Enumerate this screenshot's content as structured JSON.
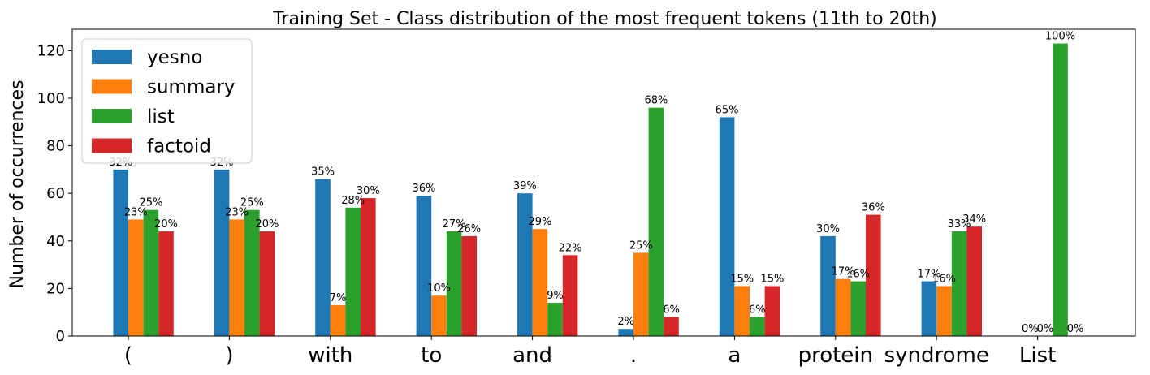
{
  "chart_data": {
    "type": "bar",
    "title": "Training Set - Class distribution of the most frequent tokens (11th to 20th)",
    "xlabel": "",
    "ylabel": "Number of occurrences",
    "categories": [
      "(",
      ")",
      "with",
      "to",
      "and",
      ".",
      "a",
      "protein",
      "syndrome",
      "List"
    ],
    "ylim": [
      0,
      129
    ],
    "yticks": [
      0,
      20,
      40,
      60,
      80,
      100,
      120
    ],
    "grid": false,
    "legend": "top-left",
    "series": [
      {
        "name": "yesno",
        "color": "#1f77b4",
        "values": [
          70,
          70,
          66,
          59,
          60,
          3,
          92,
          42,
          23,
          0
        ],
        "labels": [
          "32%",
          "32%",
          "35%",
          "36%",
          "39%",
          "2%",
          "65%",
          "30%",
          "17%",
          "0%"
        ]
      },
      {
        "name": "summary",
        "color": "#ff7f0e",
        "values": [
          49,
          49,
          13,
          17,
          45,
          35,
          21,
          24,
          21,
          0
        ],
        "labels": [
          "23%",
          "23%",
          "7%",
          "10%",
          "29%",
          "25%",
          "15%",
          "17%",
          "16%",
          "0%"
        ]
      },
      {
        "name": "list",
        "color": "#2ca02c",
        "values": [
          53,
          53,
          54,
          44,
          14,
          96,
          8,
          23,
          44,
          123
        ],
        "labels": [
          "25%",
          "25%",
          "28%",
          "27%",
          "9%",
          "68%",
          "6%",
          "16%",
          "33%",
          "100%"
        ]
      },
      {
        "name": "factoid",
        "color": "#d62728",
        "values": [
          44,
          44,
          58,
          42,
          34,
          8,
          21,
          51,
          46,
          0
        ],
        "labels": [
          "20%",
          "20%",
          "30%",
          "26%",
          "22%",
          "6%",
          "15%",
          "36%",
          "34%",
          "0%"
        ]
      }
    ]
  }
}
